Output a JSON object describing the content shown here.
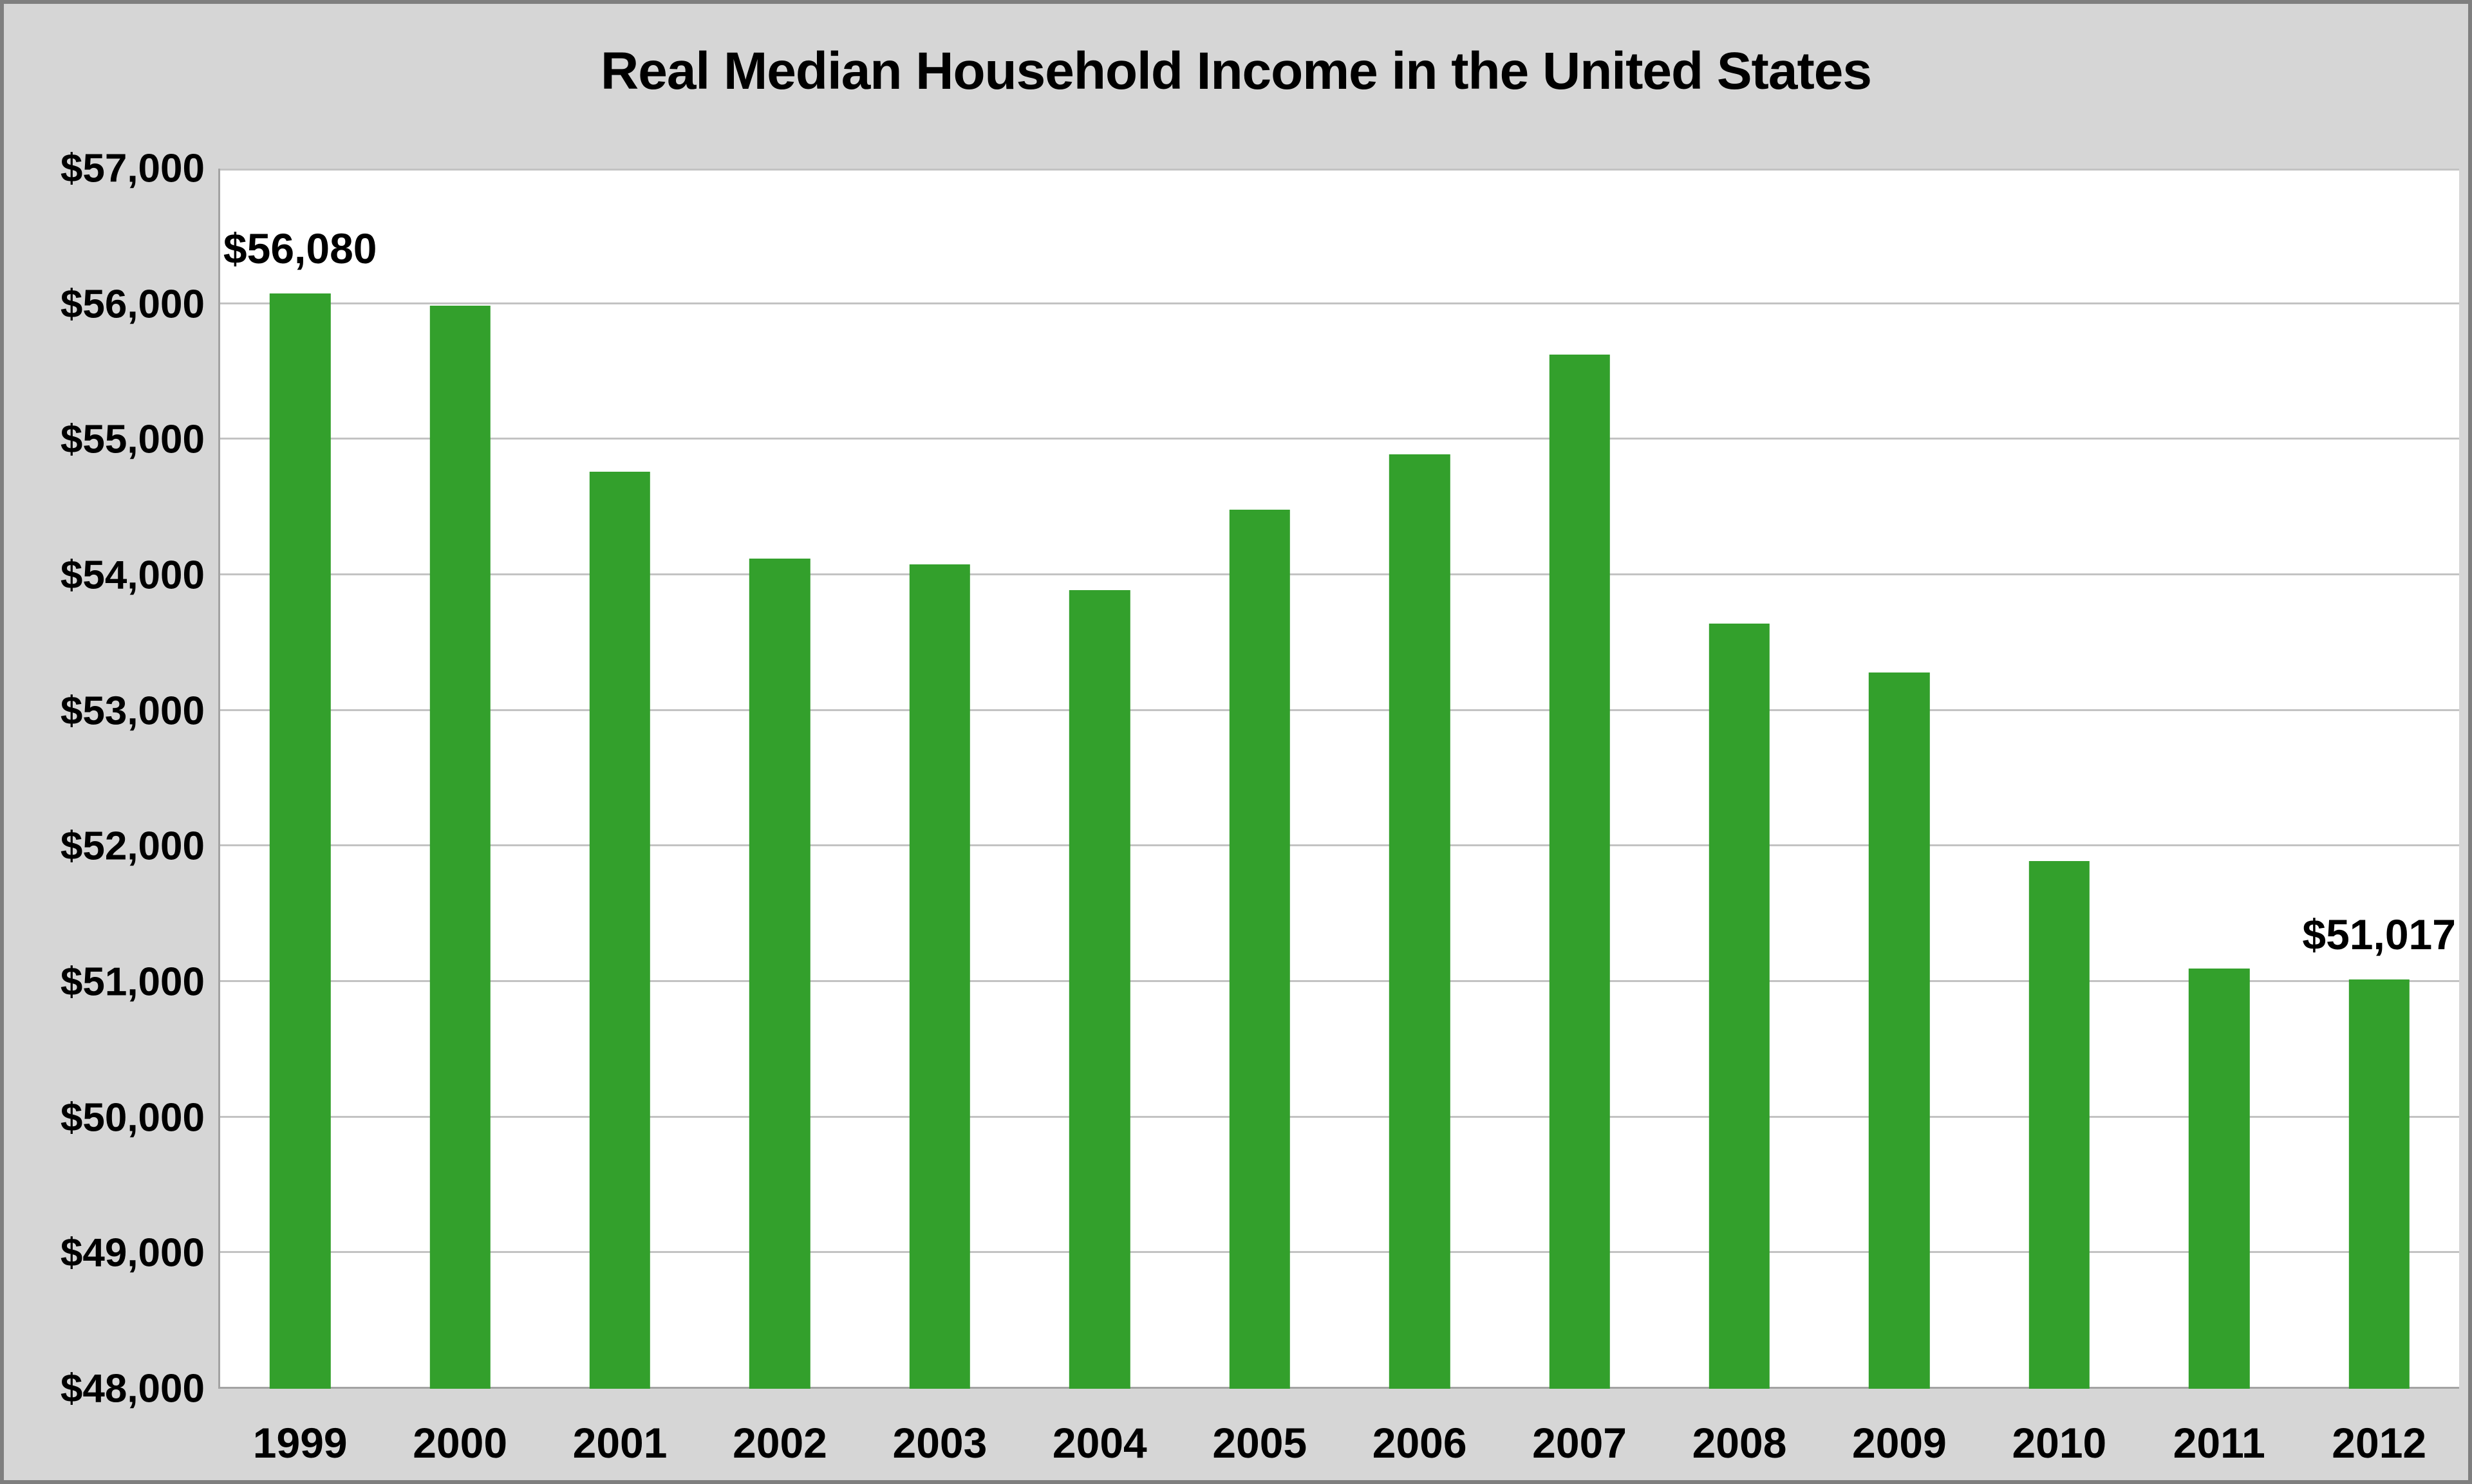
{
  "chart_data": {
    "type": "bar",
    "title": "Real Median Household Income in the United States",
    "categories": [
      "1999",
      "2000",
      "2001",
      "2002",
      "2003",
      "2004",
      "2005",
      "2006",
      "2007",
      "2008",
      "2009",
      "2010",
      "2011",
      "2012"
    ],
    "values": [
      56080,
      55987,
      54766,
      54125,
      54080,
      53891,
      54486,
      54892,
      55627,
      53644,
      53285,
      51892,
      51100,
      51017
    ],
    "xlabel": "",
    "ylabel": "",
    "ylim": [
      48000,
      57000
    ],
    "ytick_step": 1000,
    "ytick_labels": [
      "$48,000",
      "$49,000",
      "$50,000",
      "$51,000",
      "$52,000",
      "$53,000",
      "$54,000",
      "$55,000",
      "$56,000",
      "$57,000"
    ],
    "grid": true,
    "legend": "none",
    "bar_color": "#33A02C",
    "annotations": [
      {
        "category": "1999",
        "text": "$56,080"
      },
      {
        "category": "2012",
        "text": "$51,017"
      }
    ]
  },
  "colors": {
    "bar": "#33A02C",
    "background": "#D6D6D6",
    "plot_background": "#FFFFFF",
    "gridline": "#C3C3C3",
    "axis_line": "#A3A3A3",
    "frame_border": "#7F7F7F",
    "text": "#000000"
  }
}
